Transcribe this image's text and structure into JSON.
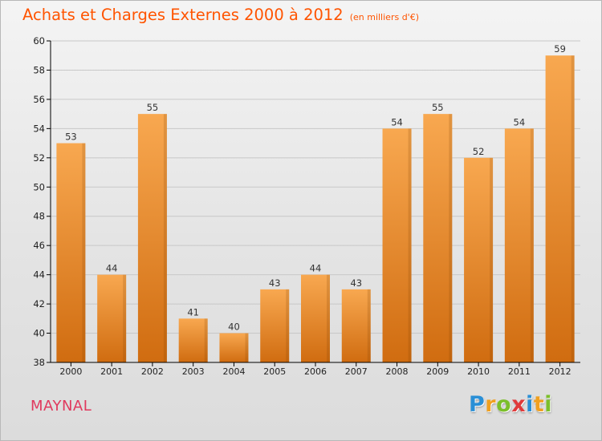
{
  "header": {
    "title": "Achats et Charges Externes 2000 à 2012",
    "unit": "(en milliers d'€)"
  },
  "commune": {
    "name": "MAYNAL"
  },
  "brand": {
    "letters": [
      {
        "char": "P",
        "color": "#2a8fd6"
      },
      {
        "char": "r",
        "color": "#f0a020"
      },
      {
        "char": "o",
        "color": "#7bbf2a"
      },
      {
        "char": "x",
        "color": "#e03a3a"
      },
      {
        "char": "i",
        "color": "#2a8fd6"
      },
      {
        "char": "t",
        "color": "#f0a020"
      },
      {
        "char": "i",
        "color": "#7bbf2a"
      }
    ]
  },
  "colors": {
    "title": "#ff5400",
    "bar_top": "#f8a850",
    "bar_bottom": "#d06c10",
    "axis": "#000000",
    "grid": "#c8c8c8"
  },
  "chart_data": {
    "type": "bar",
    "title": "Achats et Charges Externes 2000 à 2012",
    "subtitle": "(en milliers d'€)",
    "xlabel": "",
    "ylabel": "",
    "categories": [
      "2000",
      "2001",
      "2002",
      "2003",
      "2004",
      "2005",
      "2006",
      "2007",
      "2008",
      "2009",
      "2010",
      "2011",
      "2012"
    ],
    "values": [
      53,
      44,
      55,
      41,
      40,
      43,
      44,
      43,
      54,
      55,
      52,
      54,
      59
    ],
    "ylim": [
      38,
      60
    ],
    "yticks": [
      38,
      40,
      42,
      44,
      46,
      48,
      50,
      52,
      54,
      56,
      58,
      60
    ],
    "grid": true,
    "data_labels": true
  }
}
